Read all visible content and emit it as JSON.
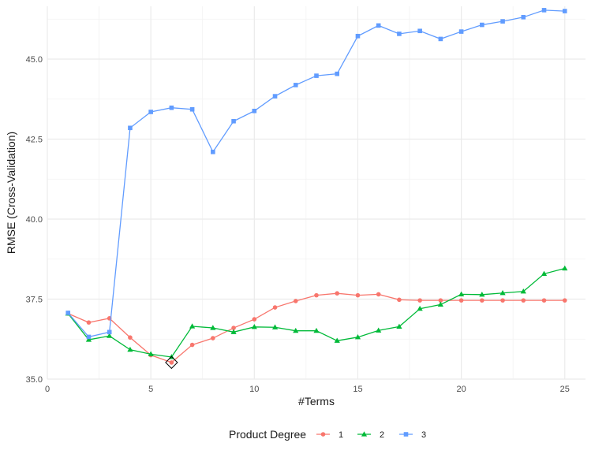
{
  "chart_data": {
    "type": "line",
    "xlabel": "#Terms",
    "ylabel": "RMSE (Cross-Validation)",
    "xlim": [
      0,
      26
    ],
    "ylim": [
      35.0,
      46.65
    ],
    "x_ticks": [
      0,
      5,
      10,
      15,
      20,
      25
    ],
    "x_tick_labels": [
      "0",
      "5",
      "10",
      "15",
      "20",
      "25"
    ],
    "y_ticks": [
      35.0,
      37.5,
      40.0,
      42.5,
      45.0
    ],
    "y_tick_labels": [
      "35.0",
      "37.5",
      "40.0",
      "42.5",
      "45.0"
    ],
    "grid": true,
    "legend_title": "Product Degree",
    "legend_position": "bottom",
    "x": [
      1,
      2,
      3,
      4,
      5,
      6,
      7,
      8,
      9,
      10,
      11,
      12,
      13,
      14,
      15,
      16,
      17,
      18,
      19,
      20,
      21,
      22,
      23,
      24,
      25
    ],
    "series": [
      {
        "name": "1",
        "color": "#F8766D",
        "marker": "circle",
        "values": [
          37.05,
          36.77,
          36.9,
          36.3,
          35.75,
          35.52,
          36.07,
          36.28,
          36.6,
          36.87,
          37.24,
          37.44,
          37.62,
          37.68,
          37.62,
          37.65,
          37.48,
          37.46,
          37.46,
          37.46,
          37.46,
          37.46,
          37.46,
          37.46,
          37.46
        ]
      },
      {
        "name": "2",
        "color": "#00BA38",
        "marker": "triangle",
        "values": [
          37.05,
          36.23,
          36.35,
          35.92,
          35.78,
          35.69,
          36.65,
          36.6,
          36.47,
          36.63,
          36.62,
          36.51,
          36.51,
          36.2,
          36.31,
          36.52,
          36.64,
          37.2,
          37.33,
          37.65,
          37.64,
          37.69,
          37.74,
          38.29,
          38.46
        ]
      },
      {
        "name": "3",
        "color": "#619CFF",
        "marker": "square",
        "values": [
          37.07,
          36.32,
          36.47,
          42.85,
          43.35,
          43.48,
          43.43,
          42.1,
          43.06,
          43.38,
          43.84,
          44.19,
          44.48,
          44.54,
          45.72,
          46.05,
          45.79,
          45.88,
          45.63,
          45.86,
          46.07,
          46.18,
          46.31,
          46.53,
          46.5
        ]
      }
    ],
    "highlight": {
      "x": 6,
      "y": 35.52,
      "marker": "diamond-open"
    }
  }
}
